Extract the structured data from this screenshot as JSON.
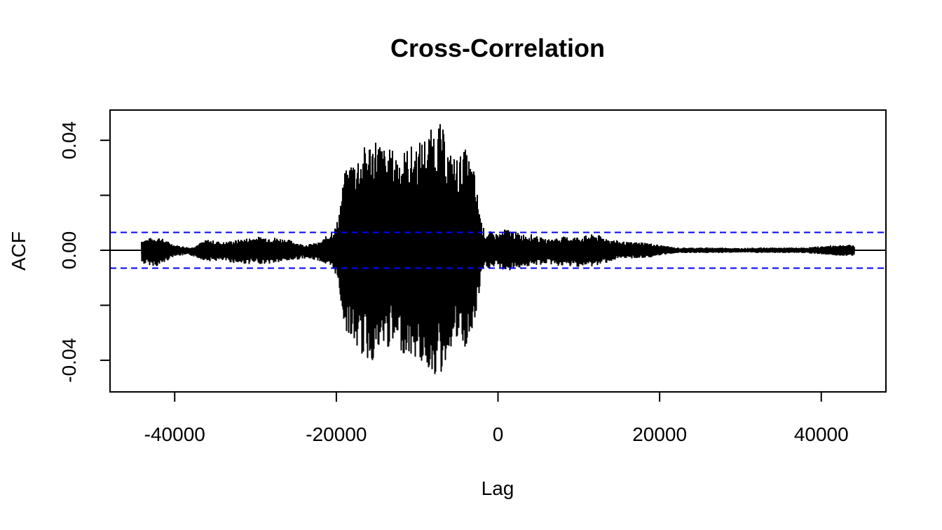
{
  "chart_data": {
    "type": "line",
    "title": "Cross-Correlation",
    "xlabel": "Lag",
    "ylabel": "ACF",
    "xlim": [
      -48000,
      48000
    ],
    "ylim": [
      -0.0515,
      0.051
    ],
    "x_ticks": [
      -40000,
      -20000,
      0,
      20000,
      40000
    ],
    "x_tick_labels": [
      "-40000",
      "-20000",
      "0",
      "20000",
      "40000"
    ],
    "y_ticks": [
      -0.04,
      -0.02,
      0.0,
      0.02,
      0.04
    ],
    "y_tick_labels": [
      "-0.04",
      "",
      "0.00",
      "",
      "0.04"
    ],
    "confidence_band": 0.0065,
    "zero_line": 0,
    "lag_range": [
      -44100,
      44100
    ],
    "envelope": {
      "lag": [
        -44000,
        -42000,
        -40000,
        -38000,
        -36000,
        -34000,
        -32000,
        -30000,
        -28000,
        -26000,
        -24000,
        -22000,
        -21000,
        -20000,
        -19500,
        -19000,
        -18000,
        -17000,
        -16000,
        -15000,
        -14000,
        -13000,
        -12000,
        -11000,
        -10000,
        -9000,
        -8000,
        -7500,
        -7000,
        -6000,
        -5000,
        -4000,
        -3000,
        -2500,
        -2000,
        -1500,
        -1000,
        0,
        1000,
        2000,
        3000,
        4000,
        6000,
        8000,
        10000,
        12000,
        14000,
        16000,
        18000,
        20000,
        22000,
        24000,
        26000,
        28000,
        30000,
        32000,
        34000,
        36000,
        38000,
        40000,
        42000,
        44000
      ],
      "upper": [
        0.004,
        0.005,
        0.002,
        0.001,
        0.004,
        0.003,
        0.004,
        0.005,
        0.005,
        0.004,
        0.002,
        0.003,
        0.006,
        0.009,
        0.018,
        0.028,
        0.034,
        0.036,
        0.04,
        0.042,
        0.037,
        0.037,
        0.036,
        0.038,
        0.039,
        0.042,
        0.045,
        0.047,
        0.046,
        0.036,
        0.034,
        0.037,
        0.03,
        0.02,
        0.01,
        0.006,
        0.007,
        0.006,
        0.008,
        0.007,
        0.006,
        0.006,
        0.004,
        0.005,
        0.005,
        0.006,
        0.004,
        0.003,
        0.003,
        0.002,
        0.001,
        0.001,
        0.001,
        0.001,
        0.0008,
        0.001,
        0.001,
        0.001,
        0.001,
        0.0015,
        0.002,
        0.002
      ],
      "lower": [
        -0.005,
        -0.006,
        -0.002,
        -0.002,
        -0.004,
        -0.004,
        -0.005,
        -0.005,
        -0.005,
        -0.004,
        -0.003,
        -0.004,
        -0.006,
        -0.009,
        -0.018,
        -0.028,
        -0.034,
        -0.038,
        -0.041,
        -0.04,
        -0.036,
        -0.036,
        -0.037,
        -0.039,
        -0.04,
        -0.043,
        -0.045,
        -0.047,
        -0.046,
        -0.036,
        -0.034,
        -0.037,
        -0.03,
        -0.02,
        -0.01,
        -0.006,
        -0.007,
        -0.006,
        -0.008,
        -0.007,
        -0.006,
        -0.006,
        -0.005,
        -0.006,
        -0.006,
        -0.006,
        -0.004,
        -0.003,
        -0.003,
        -0.002,
        -0.001,
        -0.001,
        -0.001,
        -0.001,
        -0.0008,
        -0.001,
        -0.001,
        -0.001,
        -0.001,
        -0.0015,
        -0.002,
        -0.002
      ]
    },
    "colors": {
      "series": "#000000",
      "confidence": "#0000ff",
      "zero_line": "#000000",
      "axis": "#000000"
    },
    "grid": false,
    "legend": "none"
  }
}
